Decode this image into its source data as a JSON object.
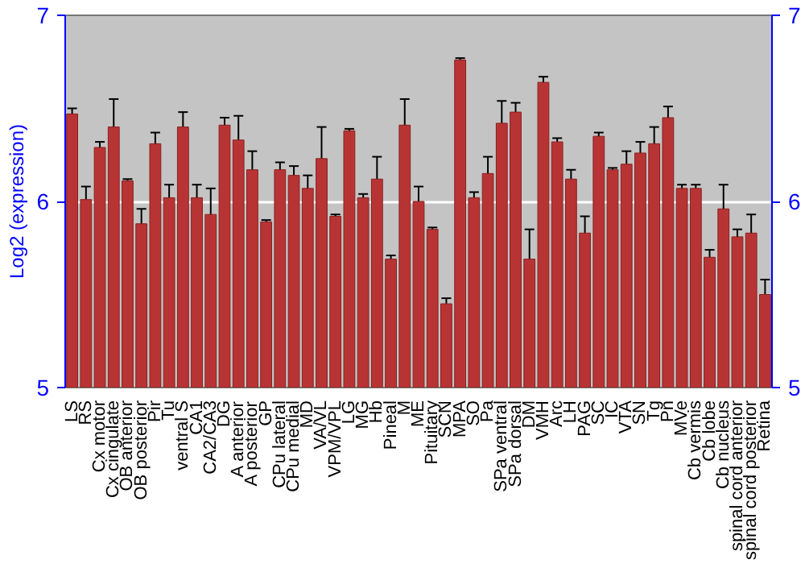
{
  "chart_data": {
    "type": "bar",
    "ylabel": "Log2 (expression)",
    "categories": [
      "LS",
      "RS",
      "Cx motor",
      "Cx cingulate",
      "OB anterior",
      "OB posterior",
      "Pir",
      "Tu",
      "ventral S",
      "CA1",
      "CA2/CA3",
      "DG",
      "A anterior",
      "A posterior",
      "GP",
      "CPu lateral",
      "CPu medial",
      "MD",
      "VA/VL",
      "VPM/VPL",
      "LG",
      "MG",
      "Hb",
      "Pineal",
      "M",
      "ME",
      "Pituitary",
      "SCN",
      "MPA",
      "SO",
      "Pa",
      "SPa ventral",
      "SPa dorsal",
      "DM",
      "VMH",
      "Arc",
      "LH",
      "PAG",
      "SC",
      "IC",
      "VTA",
      "SN",
      "Tg",
      "Pn",
      "MVe",
      "Cb vermis",
      "Cb lobe",
      "Cb nucleus",
      "spinal cord anterior",
      "spinal cord posterior",
      "Retina"
    ],
    "values": [
      6.47,
      6.01,
      6.29,
      6.4,
      6.11,
      5.88,
      6.31,
      6.02,
      6.4,
      6.02,
      5.93,
      6.41,
      6.33,
      6.17,
      5.89,
      6.17,
      6.14,
      6.07,
      6.23,
      5.92,
      6.38,
      6.02,
      6.12,
      5.69,
      6.41,
      6.0,
      5.85,
      5.45,
      6.76,
      6.02,
      6.15,
      6.42,
      6.48,
      5.69,
      6.64,
      6.32,
      6.12,
      5.83,
      6.35,
      6.17,
      6.2,
      6.26,
      6.31,
      6.45,
      6.07,
      6.07,
      5.7,
      5.96,
      5.81,
      5.83,
      5.5
    ],
    "errors": [
      0.03,
      0.07,
      0.03,
      0.15,
      0.01,
      0.08,
      0.06,
      0.07,
      0.08,
      0.07,
      0.14,
      0.04,
      0.13,
      0.1,
      0.01,
      0.04,
      0.05,
      0.07,
      0.17,
      0.01,
      0.01,
      0.02,
      0.12,
      0.02,
      0.14,
      0.08,
      0.01,
      0.03,
      0.01,
      0.03,
      0.09,
      0.12,
      0.05,
      0.16,
      0.03,
      0.02,
      0.05,
      0.09,
      0.02,
      0.01,
      0.07,
      0.06,
      0.09,
      0.06,
      0.02,
      0.02,
      0.04,
      0.13,
      0.04,
      0.1,
      0.08
    ],
    "color": "#b83434",
    "ylim": [
      5,
      7
    ],
    "yticks": [
      5,
      6,
      7
    ],
    "y2lim": [
      5,
      7
    ],
    "y2ticks": [
      5,
      6,
      7
    ],
    "grid": "y"
  }
}
